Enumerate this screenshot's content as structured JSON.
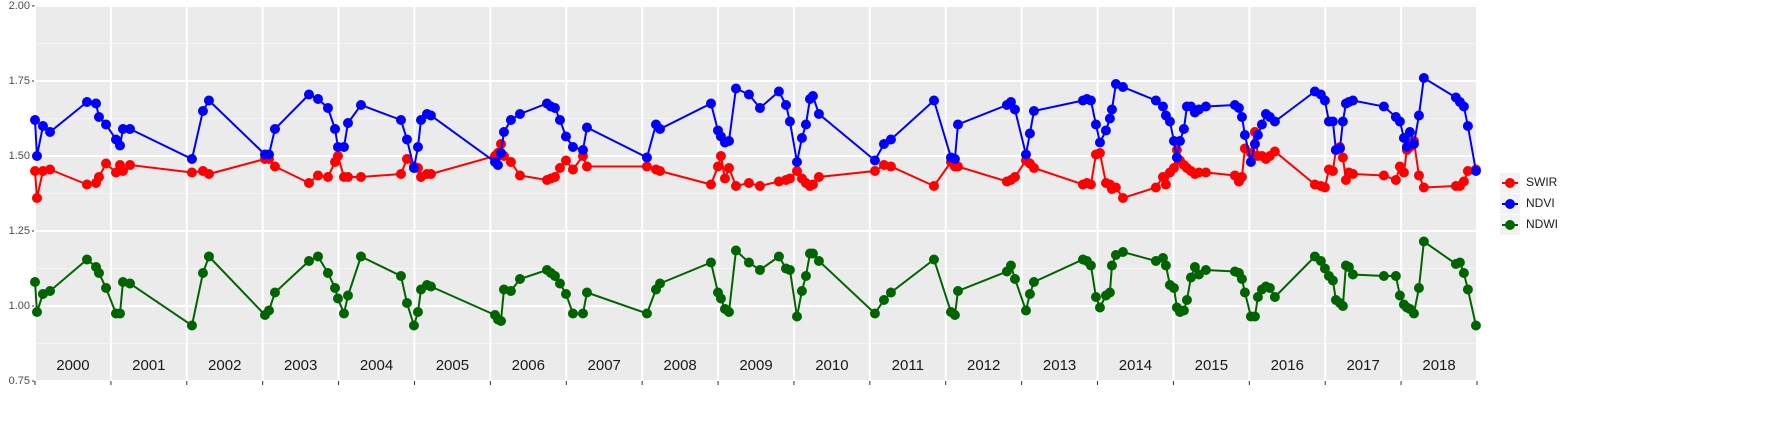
{
  "chart_data": {
    "type": "line",
    "x": [
      2000.0,
      2000.026,
      2000.105,
      2000.198,
      2000.685,
      2000.804,
      2000.843,
      2000.936,
      2001.067,
      2001.12,
      2001.159,
      2001.252,
      2002.068,
      2002.213,
      2002.292,
      2003.03,
      2003.083,
      2003.162,
      2003.61,
      2003.729,
      2003.86,
      2003.953,
      2003.992,
      2004.071,
      2004.124,
      2004.295,
      2004.822,
      2004.901,
      2004.993,
      2005.046,
      2005.086,
      2005.165,
      2005.217,
      2006.061,
      2006.1,
      2006.14,
      2006.179,
      2006.271,
      2006.39,
      2006.746,
      2006.798,
      2006.851,
      2006.917,
      2006.996,
      2007.088,
      2007.22,
      2007.273,
      2008.063,
      2008.182,
      2008.235,
      2008.907,
      2008.999,
      2009.038,
      2009.091,
      2009.144,
      2009.236,
      2009.407,
      2009.552,
      2009.802,
      2009.895,
      2009.947,
      2010.04,
      2010.105,
      2010.158,
      2010.211,
      2010.25,
      2010.329,
      2011.067,
      2011.186,
      2011.278,
      2011.845,
      2012.069,
      2012.121,
      2012.161,
      2012.806,
      2012.859,
      2012.912,
      2013.057,
      2013.109,
      2013.162,
      2013.808,
      2013.86,
      2013.913,
      2013.979,
      2014.032,
      2014.111,
      2014.163,
      2014.19,
      2014.242,
      2014.335,
      2014.769,
      2014.862,
      2014.901,
      2014.954,
      2015.007,
      2015.046,
      2015.086,
      2015.138,
      2015.178,
      2015.231,
      2015.283,
      2015.336,
      2015.428,
      2015.81,
      2015.863,
      2015.903,
      2015.942,
      2016.021,
      2016.074,
      2016.113,
      2016.166,
      2016.219,
      2016.271,
      2016.337,
      2016.864,
      2016.943,
      2016.996,
      2017.049,
      2017.101,
      2017.141,
      2017.194,
      2017.233,
      2017.273,
      2017.312,
      2017.365,
      2017.773,
      2017.931,
      2017.984,
      2018.037,
      2018.076,
      2018.116,
      2018.169,
      2018.235,
      2018.3,
      2018.722,
      2018.775,
      2018.827,
      2018.88,
      2018.986
    ],
    "series": [
      {
        "name": "SWIR",
        "color": "#ff0000",
        "values": [
          1.45,
          1.36,
          1.45,
          1.455,
          1.405,
          1.41,
          1.43,
          1.475,
          1.445,
          1.47,
          1.45,
          1.47,
          1.445,
          1.45,
          1.44,
          1.49,
          1.49,
          1.465,
          1.41,
          1.435,
          1.43,
          1.48,
          1.5,
          1.43,
          1.43,
          1.43,
          1.44,
          1.49,
          1.465,
          1.46,
          1.43,
          1.44,
          1.44,
          1.5,
          1.51,
          1.54,
          1.5,
          1.48,
          1.435,
          1.42,
          1.425,
          1.43,
          1.46,
          1.485,
          1.455,
          1.5,
          1.465,
          1.465,
          1.455,
          1.45,
          1.405,
          1.465,
          1.5,
          1.425,
          1.46,
          1.4,
          1.41,
          1.4,
          1.415,
          1.42,
          1.425,
          1.45,
          1.425,
          1.41,
          1.4,
          1.405,
          1.43,
          1.45,
          1.47,
          1.465,
          1.4,
          1.48,
          1.465,
          1.465,
          1.415,
          1.42,
          1.43,
          1.485,
          1.475,
          1.46,
          1.405,
          1.41,
          1.405,
          1.505,
          1.51,
          1.41,
          1.405,
          1.39,
          1.395,
          1.36,
          1.395,
          1.43,
          1.405,
          1.445,
          1.46,
          1.52,
          1.485,
          1.47,
          1.46,
          1.45,
          1.44,
          1.445,
          1.445,
          1.435,
          1.415,
          1.43,
          1.525,
          1.51,
          1.58,
          1.5,
          1.5,
          1.49,
          1.5,
          1.515,
          1.405,
          1.4,
          1.395,
          1.455,
          1.45,
          1.52,
          1.53,
          1.495,
          1.42,
          1.445,
          1.44,
          1.435,
          1.42,
          1.465,
          1.445,
          1.52,
          1.53,
          1.55,
          1.435,
          1.395,
          1.4,
          1.4,
          1.415,
          1.45,
          1.455
        ]
      },
      {
        "name": "NDVI",
        "color": "#0000ff",
        "values": [
          1.62,
          1.5,
          1.6,
          1.58,
          1.68,
          1.675,
          1.63,
          1.605,
          1.555,
          1.535,
          1.59,
          1.59,
          1.49,
          1.65,
          1.685,
          1.505,
          1.505,
          1.59,
          1.705,
          1.69,
          1.66,
          1.59,
          1.53,
          1.53,
          1.61,
          1.67,
          1.62,
          1.555,
          1.46,
          1.53,
          1.62,
          1.64,
          1.635,
          1.48,
          1.47,
          1.51,
          1.58,
          1.62,
          1.64,
          1.675,
          1.665,
          1.66,
          1.62,
          1.565,
          1.53,
          1.52,
          1.595,
          1.495,
          1.605,
          1.59,
          1.675,
          1.585,
          1.565,
          1.545,
          1.55,
          1.725,
          1.705,
          1.66,
          1.715,
          1.67,
          1.615,
          1.48,
          1.56,
          1.605,
          1.69,
          1.7,
          1.64,
          1.485,
          1.54,
          1.555,
          1.685,
          1.495,
          1.49,
          1.605,
          1.67,
          1.68,
          1.655,
          1.505,
          1.575,
          1.65,
          1.685,
          1.69,
          1.685,
          1.605,
          1.545,
          1.585,
          1.625,
          1.655,
          1.74,
          1.73,
          1.685,
          1.665,
          1.635,
          1.615,
          1.55,
          1.495,
          1.55,
          1.59,
          1.665,
          1.665,
          1.645,
          1.655,
          1.665,
          1.67,
          1.66,
          1.63,
          1.57,
          1.48,
          1.54,
          1.57,
          1.605,
          1.64,
          1.63,
          1.615,
          1.715,
          1.705,
          1.685,
          1.615,
          1.615,
          1.52,
          1.525,
          1.615,
          1.675,
          1.68,
          1.685,
          1.665,
          1.63,
          1.615,
          1.56,
          1.53,
          1.58,
          1.54,
          1.635,
          1.76,
          1.695,
          1.68,
          1.665,
          1.6,
          1.45
        ]
      },
      {
        "name": "NDWI",
        "color": "#006400",
        "values": [
          1.08,
          0.98,
          1.04,
          1.05,
          1.155,
          1.13,
          1.11,
          1.06,
          0.975,
          0.975,
          1.08,
          1.075,
          0.935,
          1.11,
          1.165,
          0.97,
          0.985,
          1.045,
          1.15,
          1.165,
          1.11,
          1.06,
          1.025,
          0.975,
          1.035,
          1.165,
          1.1,
          1.01,
          0.935,
          0.98,
          1.055,
          1.07,
          1.065,
          0.97,
          0.955,
          0.95,
          1.055,
          1.05,
          1.09,
          1.12,
          1.11,
          1.1,
          1.075,
          1.04,
          0.975,
          0.975,
          1.045,
          0.975,
          1.055,
          1.075,
          1.145,
          1.045,
          1.025,
          0.99,
          0.98,
          1.185,
          1.145,
          1.12,
          1.165,
          1.125,
          1.12,
          0.965,
          1.05,
          1.1,
          1.175,
          1.175,
          1.15,
          0.975,
          1.02,
          1.045,
          1.155,
          0.98,
          0.97,
          1.05,
          1.115,
          1.135,
          1.09,
          0.985,
          1.04,
          1.08,
          1.155,
          1.15,
          1.135,
          1.03,
          0.995,
          1.035,
          1.045,
          1.135,
          1.17,
          1.18,
          1.15,
          1.16,
          1.135,
          1.07,
          1.06,
          0.995,
          0.98,
          0.985,
          1.02,
          1.095,
          1.13,
          1.105,
          1.12,
          1.115,
          1.11,
          1.09,
          1.045,
          0.965,
          0.965,
          1.03,
          1.055,
          1.065,
          1.06,
          1.03,
          1.165,
          1.15,
          1.125,
          1.1,
          1.085,
          1.02,
          1.01,
          1.0,
          1.135,
          1.13,
          1.105,
          1.1,
          1.1,
          1.035,
          1.005,
          0.995,
          0.99,
          0.975,
          1.06,
          1.215,
          1.14,
          1.145,
          1.11,
          1.055,
          0.935
        ]
      }
    ],
    "year_labels": [
      "2000",
      "2001",
      "2002",
      "2003",
      "2004",
      "2005",
      "2006",
      "2007",
      "2008",
      "2009",
      "2010",
      "2011",
      "2012",
      "2013",
      "2014",
      "2015",
      "2016",
      "2017",
      "2018"
    ],
    "xlim": [
      2000,
      2019
    ],
    "xticks": [
      2000,
      2001,
      2002,
      2003,
      2004,
      2005,
      2006,
      2007,
      2008,
      2009,
      2010,
      2011,
      2012,
      2013,
      2014,
      2015,
      2016,
      2017,
      2018,
      2019
    ],
    "ylim": [
      0.75,
      2.0
    ],
    "yticks": [
      {
        "value": 0.75,
        "label": "0.75"
      },
      {
        "value": 1.0,
        "label": "1.00"
      },
      {
        "value": 1.25,
        "label": "1.25"
      },
      {
        "value": 1.5,
        "label": "1.50"
      },
      {
        "value": 1.75,
        "label": "1.75"
      },
      {
        "value": 2.0,
        "label": "2.00"
      }
    ],
    "grid": true,
    "legend": "right"
  }
}
